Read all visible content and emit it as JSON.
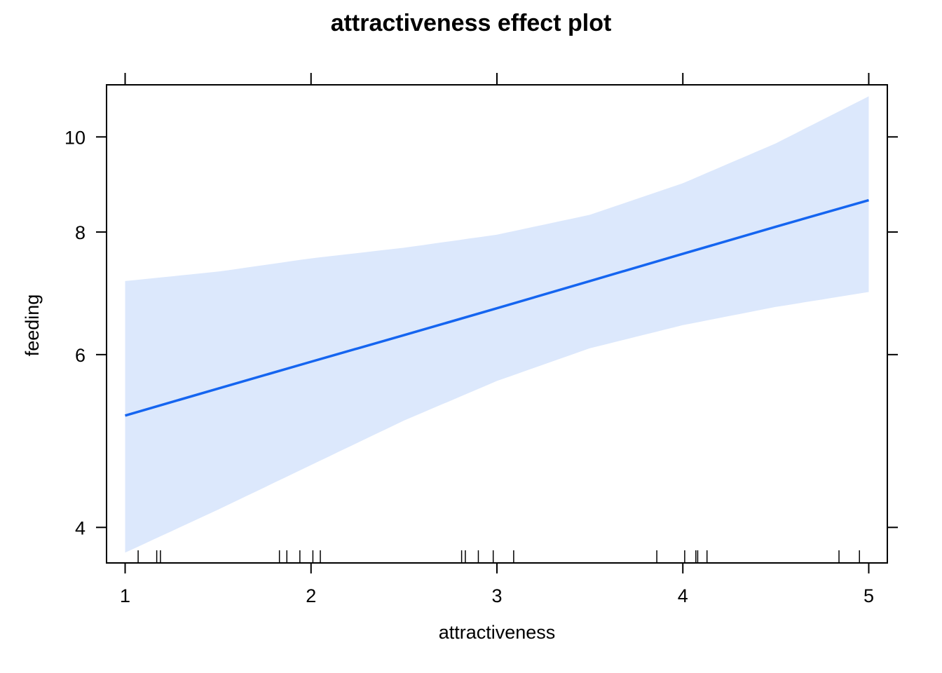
{
  "chart_data": {
    "type": "line",
    "title": "attractiveness effect plot",
    "xlabel": "attractiveness",
    "ylabel": "feeding",
    "xlim": [
      0.9,
      5.1
    ],
    "ylim": [
      3.68,
      11.3
    ],
    "y_scale": "log",
    "x_ticks": [
      "1",
      "2",
      "3",
      "4",
      "5"
    ],
    "y_ticks": [
      "4",
      "6",
      "8",
      "10"
    ],
    "x_tick_values": [
      1,
      2,
      3,
      4,
      5
    ],
    "y_tick_values": [
      4,
      6,
      8,
      10
    ],
    "series": [
      {
        "x": [
          1,
          1.5,
          2,
          2.5,
          3,
          3.5,
          4,
          4.5,
          5
        ],
        "fit": [
          5.2,
          5.54,
          5.9,
          6.28,
          6.69,
          7.13,
          7.6,
          8.1,
          8.62
        ],
        "lower": [
          3.77,
          4.17,
          4.63,
          5.14,
          5.64,
          6.09,
          6.43,
          6.71,
          6.95
        ],
        "upper": [
          7.13,
          7.29,
          7.52,
          7.71,
          7.95,
          8.33,
          8.97,
          9.85,
          11.0
        ],
        "line_color": "#1565f0",
        "band_color": "#dce8fc"
      }
    ],
    "rug_x": [
      1.07,
      1.17,
      1.19,
      1.83,
      1.87,
      1.94,
      2.01,
      2.05,
      2.81,
      2.83,
      2.9,
      2.98,
      3.09,
      3.86,
      4.01,
      4.07,
      4.08,
      4.13,
      4.84,
      4.95
    ],
    "grid": false,
    "legend": "none"
  }
}
